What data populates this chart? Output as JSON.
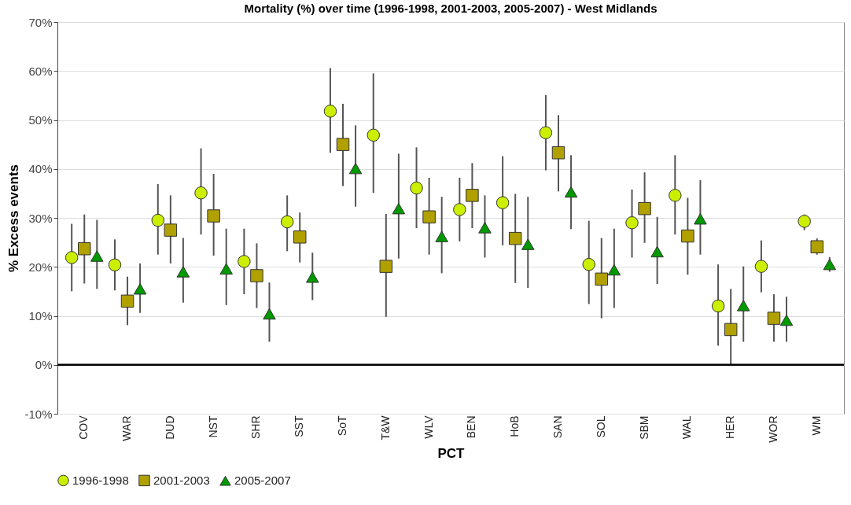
{
  "chart_data": {
    "type": "scatter",
    "title": "Mortality (%) over time (1996-1998, 2001-2003, 2005-2007) - West Midlands",
    "xlabel": "PCT",
    "ylabel": "% Excess events",
    "categories": [
      "COV",
      "WAR",
      "DUD",
      "NST",
      "SHR",
      "SST",
      "SoT",
      "T&W",
      "WLV",
      "BEN",
      "HoB",
      "SAN",
      "SOL",
      "SBM",
      "WAL",
      "HER",
      "WOR",
      "WM"
    ],
    "series": [
      {
        "name": "1996-1998",
        "color": "#ccee00",
        "marker": "circle",
        "values": [
          21.9,
          20.4,
          29.5,
          35.1,
          21.1,
          29.2,
          51.8,
          46.9,
          36.1,
          31.7,
          33.1,
          47.4,
          20.5,
          29.0,
          34.6,
          12.0,
          20.1,
          29.3
        ],
        "errors": [
          [
            15.0,
            28.8
          ],
          [
            15.2,
            25.6
          ],
          [
            22.5,
            36.9
          ],
          [
            26.6,
            44.2
          ],
          [
            14.4,
            27.8
          ],
          [
            23.2,
            34.6
          ],
          [
            43.3,
            60.6
          ],
          [
            35.1,
            59.5
          ],
          [
            27.9,
            44.4
          ],
          [
            25.2,
            38.2
          ],
          [
            24.4,
            42.6
          ],
          [
            39.7,
            55.1
          ],
          [
            12.4,
            29.4
          ],
          [
            21.9,
            35.8
          ],
          [
            26.6,
            42.8
          ],
          [
            3.9,
            20.5
          ],
          [
            14.8,
            25.4
          ],
          [
            27.5,
            30.7
          ]
        ]
      },
      {
        "name": "2001-2003",
        "color": "#b0a000",
        "marker": "square",
        "values": [
          23.7,
          13.0,
          27.5,
          30.4,
          18.2,
          26.1,
          45.0,
          20.1,
          30.2,
          34.6,
          25.8,
          43.3,
          17.5,
          31.9,
          26.3,
          7.2,
          9.5,
          24.1
        ],
        "errors": [
          [
            16.6,
            30.7
          ],
          [
            8.1,
            18.0
          ],
          [
            20.7,
            34.6
          ],
          [
            22.3,
            39.0
          ],
          [
            11.6,
            24.8
          ],
          [
            20.9,
            31.1
          ],
          [
            36.5,
            53.3
          ],
          [
            9.8,
            30.8
          ],
          [
            22.5,
            38.2
          ],
          [
            27.9,
            41.2
          ],
          [
            16.7,
            34.9
          ],
          [
            35.4,
            51.0
          ],
          [
            9.5,
            25.9
          ],
          [
            24.9,
            39.3
          ],
          [
            18.4,
            34.1
          ],
          [
            0,
            15.5
          ],
          [
            4.7,
            14.4
          ],
          [
            22.5,
            25.8
          ]
        ]
      },
      {
        "name": "2005-2007",
        "color": "#009900",
        "marker": "triangle",
        "values": [
          22.2,
          15.5,
          19.0,
          19.6,
          10.4,
          17.9,
          40.1,
          31.9,
          26.2,
          28.0,
          24.6,
          35.3,
          19.4,
          23.1,
          29.8,
          12.1,
          9.1,
          20.5
        ],
        "errors": [
          [
            15.5,
            29.6
          ],
          [
            10.6,
            20.7
          ],
          [
            12.7,
            25.9
          ],
          [
            12.2,
            27.8
          ],
          [
            4.7,
            16.8
          ],
          [
            13.2,
            22.9
          ],
          [
            32.3,
            48.9
          ],
          [
            21.7,
            43.1
          ],
          [
            18.7,
            34.3
          ],
          [
            21.9,
            34.6
          ],
          [
            15.7,
            34.3
          ],
          [
            27.7,
            42.8
          ],
          [
            11.6,
            27.8
          ],
          [
            16.5,
            30.2
          ],
          [
            22.5,
            37.7
          ],
          [
            4.7,
            20.1
          ],
          [
            4.7,
            13.9
          ],
          [
            19.0,
            22.0
          ]
        ]
      }
    ],
    "ylim": [
      -10,
      70
    ],
    "yticks": [
      {
        "value": -10,
        "label": "-10%"
      },
      {
        "value": 0,
        "label": "0%"
      },
      {
        "value": 10,
        "label": "10%"
      },
      {
        "value": 20,
        "label": "20%"
      },
      {
        "value": 30,
        "label": "30%"
      },
      {
        "value": 40,
        "label": "40%"
      },
      {
        "value": 50,
        "label": "50%"
      },
      {
        "value": 60,
        "label": "60%"
      },
      {
        "value": 70,
        "label": "70%"
      }
    ],
    "ref_lines": [
      {
        "axis": "y",
        "value": 0,
        "color": "#000000"
      }
    ],
    "grid": "y",
    "legend": "bottom"
  }
}
